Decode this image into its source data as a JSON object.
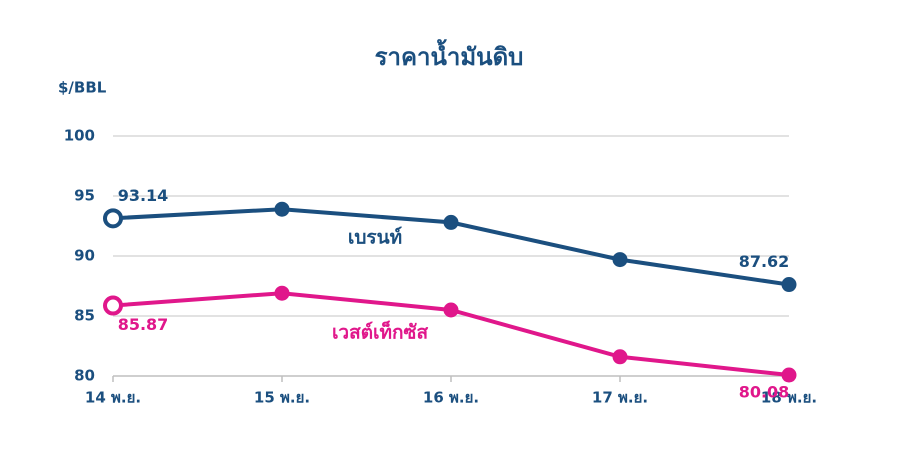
{
  "chart_data": {
    "type": "line",
    "title": "ราคาน้ำมันดิบ",
    "y_label": "$/BBL",
    "categories": [
      "14 พ.ย.",
      "15 พ.ย.",
      "16 พ.ย.",
      "17 พ.ย.",
      "18 พ.ย."
    ],
    "series": [
      {
        "name": "เบรนท์",
        "color": "#1b4f7f",
        "values": [
          93.14,
          93.9,
          92.8,
          89.7,
          87.62
        ],
        "value_labels": [
          "93.14",
          null,
          null,
          null,
          "87.62"
        ]
      },
      {
        "name": "เวสต์เท็กซัส",
        "color": "#e0178b",
        "values": [
          85.87,
          86.9,
          85.5,
          81.6,
          80.08
        ],
        "value_labels": [
          "85.87",
          null,
          null,
          null,
          "80.08"
        ]
      }
    ],
    "ylim": [
      80,
      100
    ],
    "yticks": [
      80,
      85,
      90,
      95,
      100
    ],
    "grid": true
  }
}
